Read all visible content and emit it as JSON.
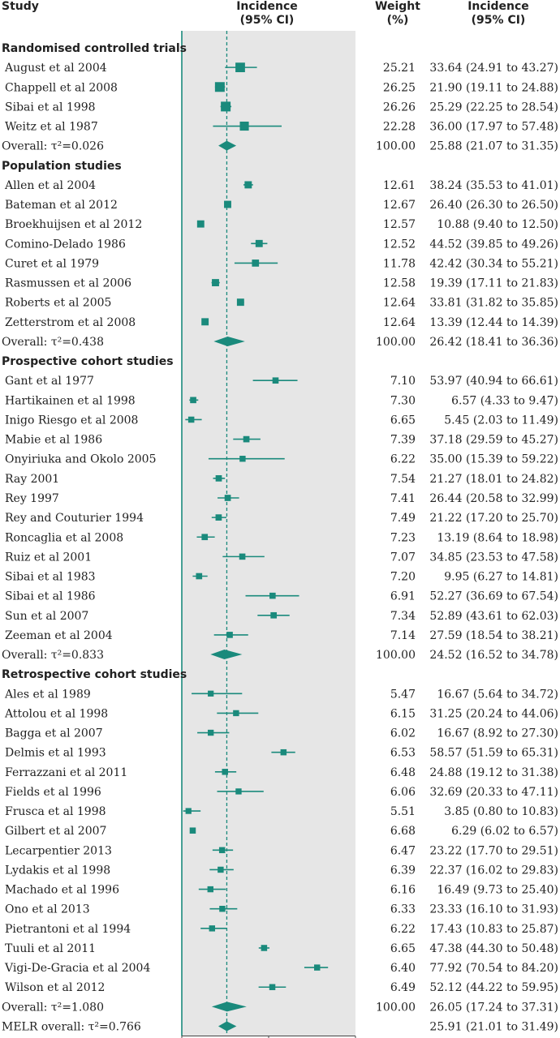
{
  "header": {
    "study": "Study",
    "incidence_ci_line1": "Incidence",
    "incidence_ci_line2": "(95% CI)",
    "weight_line1": "Weight",
    "weight_line2": "(%)",
    "incidence_line1": "Incidence",
    "incidence_line2": "(95% CI)"
  },
  "colors": {
    "marker": "#1a8a7c",
    "panel": "#e6e6e6",
    "axis": "#1a8a7c"
  },
  "chart_data": {
    "type": "forest",
    "xlim": [
      0,
      100
    ],
    "x_ticks": [
      0,
      50,
      100
    ],
    "reference_line": 25.91,
    "grid": false,
    "rows": [
      {
        "kind": "section",
        "label": "Randomised controlled trials"
      },
      {
        "kind": "study",
        "label": "August et al 2004",
        "weight": "25.21",
        "est": 33.64,
        "lo": 24.91,
        "hi": 43.27,
        "ci_text": "33.64 (24.91 to 43.27)"
      },
      {
        "kind": "study",
        "label": "Chappell et al 2008",
        "weight": "26.25",
        "est": 21.9,
        "lo": 19.11,
        "hi": 24.88,
        "ci_text": "21.90 (19.11 to 24.88)"
      },
      {
        "kind": "study",
        "label": "Sibai et al 1998",
        "weight": "26.26",
        "est": 25.29,
        "lo": 22.25,
        "hi": 28.54,
        "ci_text": "25.29 (22.25 to 28.54)"
      },
      {
        "kind": "study",
        "label": "Weitz et al 1987",
        "weight": "22.28",
        "est": 36.0,
        "lo": 17.97,
        "hi": 57.48,
        "ci_text": "36.00 (17.97 to 57.48)"
      },
      {
        "kind": "overall",
        "label": "Overall: τ²=0.026",
        "weight": "100.00",
        "est": 25.88,
        "lo": 21.07,
        "hi": 31.35,
        "ci_text": "25.88 (21.07 to 31.35)"
      },
      {
        "kind": "section",
        "label": "Population studies"
      },
      {
        "kind": "study",
        "label": "Allen et al 2004",
        "weight": "12.61",
        "est": 38.24,
        "lo": 35.53,
        "hi": 41.01,
        "ci_text": "38.24 (35.53 to 41.01)"
      },
      {
        "kind": "study",
        "label": "Bateman et al 2012",
        "weight": "12.67",
        "est": 26.4,
        "lo": 26.3,
        "hi": 26.5,
        "ci_text": "26.40 (26.30 to 26.50)"
      },
      {
        "kind": "study",
        "label": "Broekhuijsen et al 2012",
        "weight": "12.57",
        "est": 10.88,
        "lo": 9.4,
        "hi": 12.5,
        "ci_text": "10.88 (9.40 to 12.50)"
      },
      {
        "kind": "study",
        "label": "Comino-Delado 1986",
        "weight": "12.52",
        "est": 44.52,
        "lo": 39.85,
        "hi": 49.26,
        "ci_text": "44.52 (39.85 to 49.26)"
      },
      {
        "kind": "study",
        "label": "Curet et al 1979",
        "weight": "11.78",
        "est": 42.42,
        "lo": 30.34,
        "hi": 55.21,
        "ci_text": "42.42 (30.34 to 55.21)"
      },
      {
        "kind": "study",
        "label": "Rasmussen et al 2006",
        "weight": "12.58",
        "est": 19.39,
        "lo": 17.11,
        "hi": 21.83,
        "ci_text": "19.39 (17.11 to 21.83)"
      },
      {
        "kind": "study",
        "label": "Roberts et al 2005",
        "weight": "12.64",
        "est": 33.81,
        "lo": 31.82,
        "hi": 35.85,
        "ci_text": "33.81 (31.82 to 35.85)"
      },
      {
        "kind": "study",
        "label": "Zetterstrom et al 2008",
        "weight": "12.64",
        "est": 13.39,
        "lo": 12.44,
        "hi": 14.39,
        "ci_text": "13.39 (12.44 to 14.39)"
      },
      {
        "kind": "overall",
        "label": "Overall: τ²=0.438",
        "weight": "100.00",
        "est": 26.42,
        "lo": 18.41,
        "hi": 36.36,
        "ci_text": "26.42 (18.41 to 36.36)"
      },
      {
        "kind": "section",
        "label": "Prospective cohort studies"
      },
      {
        "kind": "study",
        "label": "Gant et al 1977",
        "weight": "7.10",
        "est": 53.97,
        "lo": 40.94,
        "hi": 66.61,
        "ci_text": "53.97 (40.94 to 66.61)"
      },
      {
        "kind": "study",
        "label": "Hartikainen et al 1998",
        "weight": "7.30",
        "est": 6.57,
        "lo": 4.33,
        "hi": 9.47,
        "ci_text": "6.57 (4.33 to 9.47)"
      },
      {
        "kind": "study",
        "label": "Inigo Riesgo et al 2008",
        "weight": "6.65",
        "est": 5.45,
        "lo": 2.03,
        "hi": 11.49,
        "ci_text": "5.45 (2.03 to 11.49)"
      },
      {
        "kind": "study",
        "label": "Mabie et al 1986",
        "weight": "7.39",
        "est": 37.18,
        "lo": 29.59,
        "hi": 45.27,
        "ci_text": "37.18 (29.59 to 45.27)"
      },
      {
        "kind": "study",
        "label": "Onyiriuka and Okolo 2005",
        "weight": "6.22",
        "est": 35.0,
        "lo": 15.39,
        "hi": 59.22,
        "ci_text": "35.00 (15.39 to 59.22)"
      },
      {
        "kind": "study",
        "label": "Ray 2001",
        "weight": "7.54",
        "est": 21.27,
        "lo": 18.01,
        "hi": 24.82,
        "ci_text": "21.27 (18.01 to 24.82)"
      },
      {
        "kind": "study",
        "label": "Rey 1997",
        "weight": "7.41",
        "est": 26.44,
        "lo": 20.58,
        "hi": 32.99,
        "ci_text": "26.44 (20.58 to 32.99)"
      },
      {
        "kind": "study",
        "label": "Rey and Couturier 1994",
        "weight": "7.49",
        "est": 21.22,
        "lo": 17.2,
        "hi": 25.7,
        "ci_text": "21.22 (17.20 to 25.70)"
      },
      {
        "kind": "study",
        "label": "Roncaglia et al 2008",
        "weight": "7.23",
        "est": 13.19,
        "lo": 8.64,
        "hi": 18.98,
        "ci_text": "13.19 (8.64 to 18.98)"
      },
      {
        "kind": "study",
        "label": "Ruiz et al 2001",
        "weight": "7.07",
        "est": 34.85,
        "lo": 23.53,
        "hi": 47.58,
        "ci_text": "34.85 (23.53 to 47.58)"
      },
      {
        "kind": "study",
        "label": "Sibai et al 1983",
        "weight": "7.20",
        "est": 9.95,
        "lo": 6.27,
        "hi": 14.81,
        "ci_text": "9.95 (6.27 to 14.81)"
      },
      {
        "kind": "study",
        "label": "Sibai et al 1986",
        "weight": "6.91",
        "est": 52.27,
        "lo": 36.69,
        "hi": 67.54,
        "ci_text": "52.27 (36.69 to 67.54)"
      },
      {
        "kind": "study",
        "label": "Sun et al 2007",
        "weight": "7.34",
        "est": 52.89,
        "lo": 43.61,
        "hi": 62.03,
        "ci_text": "52.89 (43.61 to 62.03)"
      },
      {
        "kind": "study",
        "label": "Zeeman et al 2004",
        "weight": "7.14",
        "est": 27.59,
        "lo": 18.54,
        "hi": 38.21,
        "ci_text": "27.59 (18.54 to 38.21)"
      },
      {
        "kind": "overall",
        "label": "Overall: τ²=0.833",
        "weight": "100.00",
        "est": 24.52,
        "lo": 16.52,
        "hi": 34.78,
        "ci_text": "24.52 (16.52 to 34.78)"
      },
      {
        "kind": "section",
        "label": "Retrospective cohort studies"
      },
      {
        "kind": "study",
        "label": "Ales et al 1989",
        "weight": "5.47",
        "est": 16.67,
        "lo": 5.64,
        "hi": 34.72,
        "ci_text": "16.67 (5.64 to 34.72)"
      },
      {
        "kind": "study",
        "label": "Attolou et al 1998",
        "weight": "6.15",
        "est": 31.25,
        "lo": 20.24,
        "hi": 44.06,
        "ci_text": "31.25 (20.24 to 44.06)"
      },
      {
        "kind": "study",
        "label": "Bagga et al 2007",
        "weight": "6.02",
        "est": 16.67,
        "lo": 8.92,
        "hi": 27.3,
        "ci_text": "16.67 (8.92 to 27.30)"
      },
      {
        "kind": "study",
        "label": "Delmis et al 1993",
        "weight": "6.53",
        "est": 58.57,
        "lo": 51.59,
        "hi": 65.31,
        "ci_text": "58.57 (51.59 to 65.31)"
      },
      {
        "kind": "study",
        "label": "Ferrazzani et al 2011",
        "weight": "6.48",
        "est": 24.88,
        "lo": 19.12,
        "hi": 31.38,
        "ci_text": "24.88 (19.12 to 31.38)"
      },
      {
        "kind": "study",
        "label": "Fields et al 1996",
        "weight": "6.06",
        "est": 32.69,
        "lo": 20.33,
        "hi": 47.11,
        "ci_text": "32.69 (20.33 to 47.11)"
      },
      {
        "kind": "study",
        "label": "Frusca et al 1998",
        "weight": "5.51",
        "est": 3.85,
        "lo": 0.8,
        "hi": 10.83,
        "ci_text": "3.85 (0.80 to 10.83)"
      },
      {
        "kind": "study",
        "label": "Gilbert et al 2007",
        "weight": "6.68",
        "est": 6.29,
        "lo": 6.02,
        "hi": 6.57,
        "ci_text": "6.29 (6.02 to 6.57)"
      },
      {
        "kind": "study",
        "label": "Lecarpentier 2013",
        "weight": "6.47",
        "est": 23.22,
        "lo": 17.7,
        "hi": 29.51,
        "ci_text": "23.22 (17.70 to 29.51)"
      },
      {
        "kind": "study",
        "label": "Lydakis et al 1998",
        "weight": "6.39",
        "est": 22.37,
        "lo": 16.02,
        "hi": 29.83,
        "ci_text": "22.37 (16.02 to 29.83)"
      },
      {
        "kind": "study",
        "label": "Machado et al 1996",
        "weight": "6.16",
        "est": 16.49,
        "lo": 9.73,
        "hi": 25.4,
        "ci_text": "16.49 (9.73 to 25.40)"
      },
      {
        "kind": "study",
        "label": "Ono et al 2013",
        "weight": "6.33",
        "est": 23.33,
        "lo": 16.1,
        "hi": 31.93,
        "ci_text": "23.33 (16.10 to 31.93)"
      },
      {
        "kind": "study",
        "label": "Pietrantoni et al 1994",
        "weight": "6.22",
        "est": 17.43,
        "lo": 10.83,
        "hi": 25.87,
        "ci_text": "17.43 (10.83 to 25.87)"
      },
      {
        "kind": "study",
        "label": "Tuuli et al 2011",
        "weight": "6.65",
        "est": 47.38,
        "lo": 44.3,
        "hi": 50.48,
        "ci_text": "47.38 (44.30 to 50.48)"
      },
      {
        "kind": "study",
        "label": "Vigi-De-Gracia et al 2004",
        "weight": "6.40",
        "est": 77.92,
        "lo": 70.54,
        "hi": 84.2,
        "ci_text": "77.92 (70.54 to 84.20)"
      },
      {
        "kind": "study",
        "label": "Wilson et al 2012",
        "weight": "6.49",
        "est": 52.12,
        "lo": 44.22,
        "hi": 59.95,
        "ci_text": "52.12 (44.22 to 59.95)"
      },
      {
        "kind": "overall",
        "label": "Overall: τ²=1.080",
        "weight": "100.00",
        "est": 26.05,
        "lo": 17.24,
        "hi": 37.31,
        "ci_text": "26.05 (17.24 to 37.31)"
      },
      {
        "kind": "overall",
        "label": "MELR overall: τ²=0.766",
        "weight": "",
        "est": 25.91,
        "lo": 21.01,
        "hi": 31.49,
        "ci_text": "25.91 (21.01 to 31.49)"
      }
    ]
  }
}
